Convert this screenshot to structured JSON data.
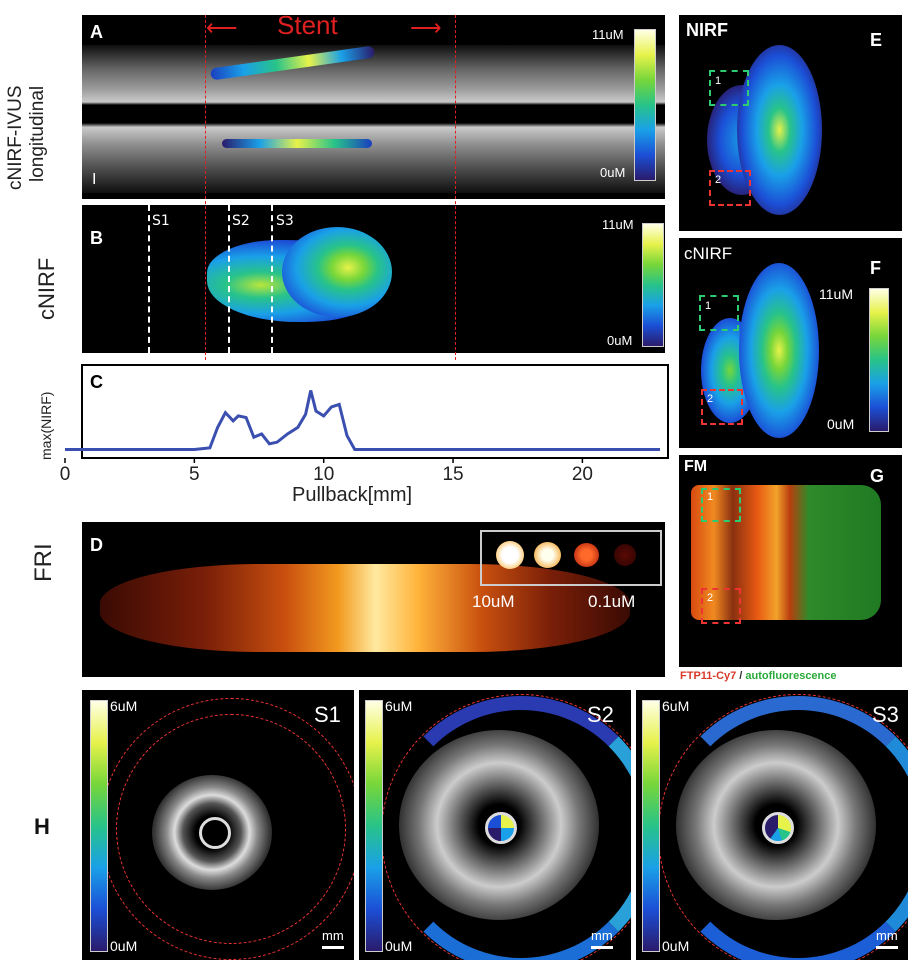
{
  "panelA": {
    "label": "A",
    "side_label_1": "cNIRF-IVUS",
    "side_label_2": "longitudinal",
    "stent_label": "Stent",
    "cbar_max": "11uM",
    "cbar_min": "0uM",
    "marker": "I"
  },
  "panelB": {
    "label": "B",
    "side_label": "cNIRF",
    "sections": [
      "S1",
      "S2",
      "S3"
    ],
    "cbar_max": "11uM",
    "cbar_min": "0uM"
  },
  "panelC": {
    "label": "C",
    "ylabel": "max(NIRF)",
    "xlabel": "Pullback[mm]",
    "xticks": [
      "0",
      "5",
      "10",
      "15",
      "20"
    ]
  },
  "panelD": {
    "label": "D",
    "side_label": "FRI",
    "inset_left": "10uM",
    "inset_right": "0.1uM"
  },
  "panelE": {
    "label": "E",
    "title": "NIRF",
    "roi": [
      "1",
      "2"
    ]
  },
  "panelF": {
    "label": "F",
    "title": "cNIRF",
    "cbar_max": "11uM",
    "cbar_min": "0uM",
    "roi": [
      "1",
      "2"
    ]
  },
  "panelG": {
    "label": "G",
    "title": "FM",
    "roi": [
      "1",
      "2"
    ],
    "legend_red": "FTP11-Cy7",
    "legend_sep": " / ",
    "legend_green": "autofluorescence"
  },
  "panelH": {
    "label": "H",
    "sections": [
      {
        "name": "S1",
        "cbar_max": "6uM",
        "cbar_min": "0uM",
        "scale": "mm"
      },
      {
        "name": "S2",
        "cbar_max": "6uM",
        "cbar_min": "0uM",
        "scale": "mm"
      },
      {
        "name": "S3",
        "cbar_max": "6uM",
        "cbar_min": "0uM",
        "scale": "mm"
      }
    ]
  },
  "chart_data": {
    "type": "line",
    "xlabel": "Pullback[mm]",
    "ylabel": "max(NIRF)",
    "xlim": [
      0,
      23
    ],
    "x": [
      0,
      1,
      2,
      3,
      4,
      5,
      5.6,
      5.9,
      6.2,
      6.5,
      6.7,
      7.0,
      7.3,
      7.6,
      7.9,
      8.2,
      8.6,
      9.0,
      9.3,
      9.5,
      9.7,
      10.0,
      10.3,
      10.6,
      10.9,
      11.2,
      12,
      15,
      20,
      23
    ],
    "values": [
      0.03,
      0.03,
      0.03,
      0.03,
      0.03,
      0.03,
      0.05,
      0.3,
      0.48,
      0.38,
      0.44,
      0.42,
      0.18,
      0.22,
      0.1,
      0.12,
      0.22,
      0.3,
      0.46,
      0.75,
      0.5,
      0.44,
      0.55,
      0.58,
      0.2,
      0.03,
      0.03,
      0.03,
      0.03,
      0.03
    ],
    "color": "#3a4fb0"
  }
}
